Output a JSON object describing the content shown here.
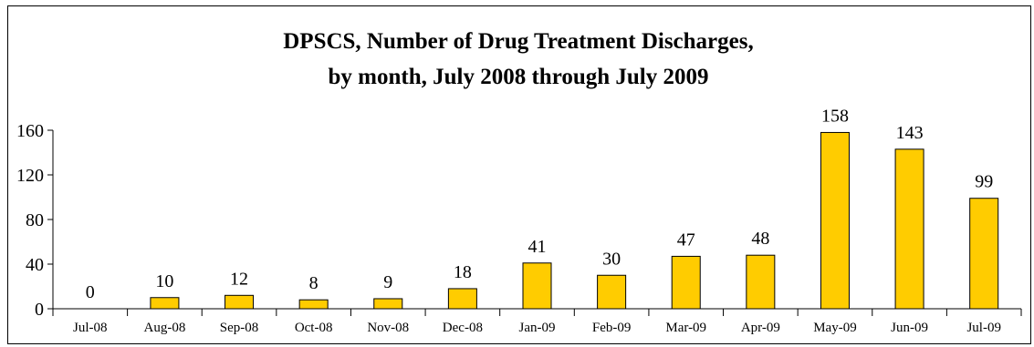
{
  "chart_data": {
    "type": "bar",
    "title_lines": [
      "DPSCS, Number of Drug Treatment Discharges,",
      "by month, July 2008 through July 2009"
    ],
    "xlabel": "",
    "ylabel": "",
    "categories": [
      "Jul-08",
      "Aug-08",
      "Sep-08",
      "Oct-08",
      "Nov-08",
      "Dec-08",
      "Jan-09",
      "Feb-09",
      "Mar-09",
      "Apr-09",
      "May-09",
      "Jun-09",
      "Jul-09"
    ],
    "values": [
      0,
      10,
      12,
      8,
      9,
      18,
      41,
      30,
      47,
      48,
      158,
      143,
      99
    ],
    "data_labels": [
      "0",
      "10",
      "12",
      "8",
      "9",
      "18",
      "41",
      "30",
      "47",
      "48",
      "158",
      "143",
      "99"
    ],
    "ylim": [
      0,
      160
    ],
    "yticks": [
      0,
      40,
      80,
      120,
      160
    ],
    "ytick_labels": [
      "0",
      "40",
      "80",
      "120",
      "160"
    ],
    "grid": false,
    "legend": "none",
    "colors": {
      "bar_fill": "#FFCC00",
      "bar_stroke": "#000000",
      "axis": "#000000",
      "background": "#FFFFFF"
    }
  }
}
